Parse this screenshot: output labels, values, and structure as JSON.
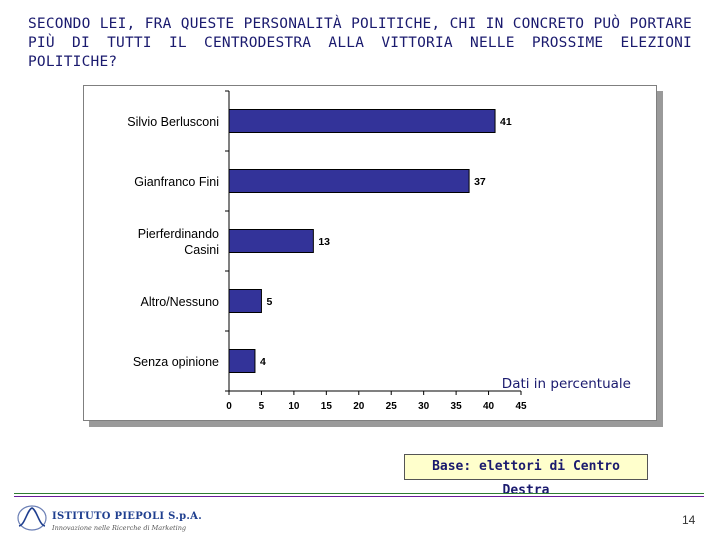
{
  "question": "SECONDO LEI, FRA QUESTE PERSONALITÀ POLITICHE, CHI IN CONCRETO PUÒ PORTARE PIÙ DI TUTTI IL CENTRODESTRA ALLA VITTORIA NELLE PROSSIME ELEZIONI POLITICHE?",
  "chart_data": {
    "type": "bar",
    "orientation": "horizontal",
    "categories": [
      [
        "Silvio Berlusconi"
      ],
      [
        "Gianfranco Fini"
      ],
      [
        "Pierferdinando",
        "Casini"
      ],
      [
        "Altro/Nessuno"
      ],
      [
        "Senza opinione"
      ]
    ],
    "values": [
      41,
      37,
      13,
      5,
      4
    ],
    "xlim": [
      0,
      45
    ],
    "xticks": [
      0,
      5,
      10,
      15,
      20,
      25,
      30,
      35,
      40,
      45
    ],
    "annotation": "Dati in percentuale",
    "bar_color": "#333399",
    "grid": false
  },
  "base_label": "Base: elettori di Centro Destra",
  "logo": {
    "name": "ISTITUTO PIEPOLI S.p.A.",
    "tagline": "Innovazione nelle Ricerche di Marketing",
    "icon": "piepoli-logo-icon"
  },
  "page_number": "14",
  "colors": {
    "title_text": "#1a1a6e",
    "footer_line_top": "#2e7d32",
    "footer_line_bottom": "#6a1b9a"
  }
}
